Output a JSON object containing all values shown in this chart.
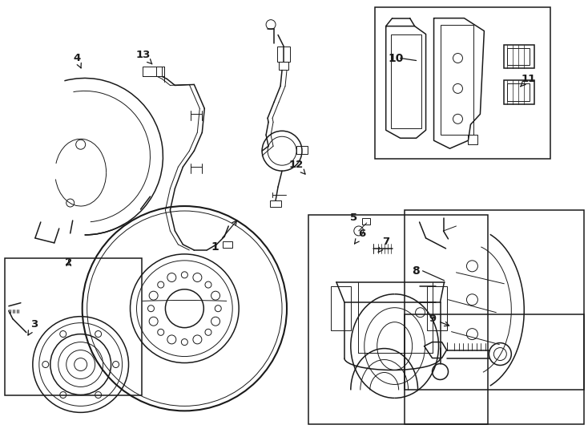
{
  "bg": "#ffffff",
  "lc": "#1a1a1a",
  "fig_w": 7.34,
  "fig_h": 5.4,
  "dpi": 100,
  "boxes": {
    "hub": [
      0.05,
      3.22,
      1.72,
      1.72
    ],
    "pads": [
      4.68,
      0.08,
      2.2,
      1.9
    ],
    "caliper": [
      3.85,
      2.68,
      2.25,
      2.62
    ],
    "knuckle": [
      5.05,
      2.62,
      2.25,
      2.68
    ],
    "bolt": [
      5.05,
      3.92,
      2.25,
      0.95
    ]
  },
  "labels": {
    "1": [
      2.68,
      3.08,
      2.98,
      2.72
    ],
    "2": [
      0.85,
      3.28,
      0.85,
      3.22
    ],
    "3": [
      0.42,
      4.05,
      0.32,
      4.22
    ],
    "4": [
      0.95,
      0.72,
      1.02,
      0.88
    ],
    "5": [
      4.42,
      2.72,
      4.6,
      2.68
    ],
    "6": [
      4.52,
      2.92,
      4.42,
      3.05
    ],
    "7": [
      4.82,
      3.02,
      4.7,
      3.18
    ],
    "8": [
      5.15,
      3.32,
      5.35,
      3.55
    ],
    "9": [
      5.4,
      3.98,
      5.65,
      4.08
    ],
    "10": [
      4.85,
      0.72,
      5.15,
      0.72
    ],
    "11": [
      6.6,
      0.98,
      6.5,
      1.08
    ],
    "12": [
      3.7,
      2.05,
      3.82,
      2.18
    ],
    "13": [
      1.78,
      0.68,
      1.9,
      0.8
    ]
  }
}
